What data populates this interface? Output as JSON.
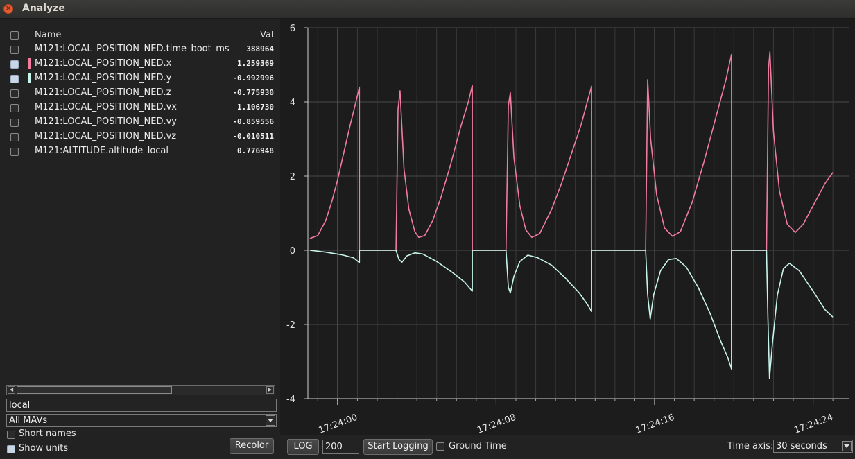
{
  "window": {
    "title": "Analyze"
  },
  "table": {
    "headers": {
      "name": "Name",
      "value": "Val"
    },
    "rows": [
      {
        "name": "M121:LOCAL_POSITION_NED.time_boot_ms",
        "value": "388964",
        "checked": false,
        "color": ""
      },
      {
        "name": "M121:LOCAL_POSITION_NED.x",
        "value": "1.259369",
        "checked": true,
        "color": "#f07ca0"
      },
      {
        "name": "M121:LOCAL_POSITION_NED.y",
        "value": "-0.992996",
        "checked": true,
        "color": "#c8f5ec"
      },
      {
        "name": "M121:LOCAL_POSITION_NED.z",
        "value": "-0.775930",
        "checked": false,
        "color": ""
      },
      {
        "name": "M121:LOCAL_POSITION_NED.vx",
        "value": "1.106730",
        "checked": false,
        "color": ""
      },
      {
        "name": "M121:LOCAL_POSITION_NED.vy",
        "value": "-0.859556",
        "checked": false,
        "color": ""
      },
      {
        "name": "M121:LOCAL_POSITION_NED.vz",
        "value": "-0.010511",
        "checked": false,
        "color": ""
      },
      {
        "name": "M121:ALTITUDE.altitude_local",
        "value": "0.776948",
        "checked": false,
        "color": ""
      }
    ]
  },
  "filter": {
    "value": "local"
  },
  "mav_select": {
    "value": "All MAVs"
  },
  "options": {
    "short_names": "Short names",
    "show_units": "Show units",
    "short_names_checked": false,
    "show_units_checked": true
  },
  "buttons": {
    "recolor": "Recolor",
    "log": "LOG",
    "start_logging": "Start Logging"
  },
  "log_field": {
    "value": "200"
  },
  "ground_time": {
    "label": "Ground Time",
    "checked": false
  },
  "time_axis": {
    "label": "Time axis:",
    "value": "30 seconds"
  },
  "chart_data": {
    "type": "line",
    "ylim": [
      -4,
      6
    ],
    "xlim": [
      -1.5,
      25.8
    ],
    "yticks": [
      -4,
      -2,
      0,
      2,
      4,
      6
    ],
    "xticks": [
      {
        "x": 0,
        "label": "17:24:00"
      },
      {
        "x": 8,
        "label": "17:24:08"
      },
      {
        "x": 16,
        "label": "17:24:16"
      },
      {
        "x": 24,
        "label": "17:24:24"
      }
    ],
    "grid": true,
    "series": [
      {
        "color": "#f07ca0",
        "points": [
          [
            -1.4,
            0.32
          ],
          [
            -1.0,
            0.4
          ],
          [
            -0.6,
            0.8
          ],
          [
            -0.3,
            1.3
          ],
          [
            0,
            1.9
          ],
          [
            0.3,
            2.6
          ],
          [
            0.6,
            3.3
          ],
          [
            0.9,
            3.95
          ],
          [
            1.1,
            4.4
          ],
          [
            1.1,
            0.0
          ],
          [
            2.95,
            0.0
          ],
          [
            3.05,
            3.8
          ],
          [
            3.15,
            4.3
          ],
          [
            3.35,
            2.2
          ],
          [
            3.6,
            1.1
          ],
          [
            3.9,
            0.5
          ],
          [
            4.1,
            0.35
          ],
          [
            4.4,
            0.4
          ],
          [
            4.8,
            0.8
          ],
          [
            5.2,
            1.4
          ],
          [
            5.7,
            2.3
          ],
          [
            6.2,
            3.3
          ],
          [
            6.6,
            4.0
          ],
          [
            6.8,
            4.45
          ],
          [
            6.8,
            0.0
          ],
          [
            8.5,
            0.0
          ],
          [
            8.62,
            3.9
          ],
          [
            8.72,
            4.25
          ],
          [
            8.9,
            2.5
          ],
          [
            9.2,
            1.2
          ],
          [
            9.5,
            0.55
          ],
          [
            9.8,
            0.35
          ],
          [
            10.2,
            0.45
          ],
          [
            10.8,
            1.1
          ],
          [
            11.3,
            1.8
          ],
          [
            11.8,
            2.6
          ],
          [
            12.3,
            3.4
          ],
          [
            12.6,
            4.0
          ],
          [
            12.82,
            4.42
          ],
          [
            12.82,
            0.0
          ],
          [
            15.55,
            0.0
          ],
          [
            15.65,
            4.6
          ],
          [
            15.8,
            3.0
          ],
          [
            16.1,
            1.5
          ],
          [
            16.5,
            0.6
          ],
          [
            16.9,
            0.38
          ],
          [
            17.3,
            0.5
          ],
          [
            17.9,
            1.3
          ],
          [
            18.5,
            2.4
          ],
          [
            19.1,
            3.6
          ],
          [
            19.6,
            4.6
          ],
          [
            19.88,
            5.28
          ],
          [
            19.88,
            0.0
          ],
          [
            21.65,
            0.0
          ],
          [
            21.75,
            4.9
          ],
          [
            21.82,
            5.35
          ],
          [
            22.0,
            3.2
          ],
          [
            22.3,
            1.6
          ],
          [
            22.7,
            0.7
          ],
          [
            23.1,
            0.48
          ],
          [
            23.5,
            0.7
          ],
          [
            24.1,
            1.3
          ],
          [
            24.6,
            1.8
          ],
          [
            25.0,
            2.1
          ]
        ]
      },
      {
        "color": "#c8f5ec",
        "points": [
          [
            -1.4,
            0.0
          ],
          [
            -0.6,
            -0.05
          ],
          [
            0.2,
            -0.12
          ],
          [
            0.8,
            -0.2
          ],
          [
            1.1,
            -0.33
          ],
          [
            1.1,
            0.0
          ],
          [
            2.95,
            0.0
          ],
          [
            3.1,
            -0.25
          ],
          [
            3.25,
            -0.32
          ],
          [
            3.5,
            -0.15
          ],
          [
            3.9,
            -0.07
          ],
          [
            4.3,
            -0.1
          ],
          [
            5.0,
            -0.3
          ],
          [
            5.8,
            -0.6
          ],
          [
            6.4,
            -0.85
          ],
          [
            6.8,
            -1.1
          ],
          [
            6.8,
            0.0
          ],
          [
            8.5,
            0.0
          ],
          [
            8.62,
            -1.0
          ],
          [
            8.72,
            -1.15
          ],
          [
            8.9,
            -0.7
          ],
          [
            9.2,
            -0.3
          ],
          [
            9.6,
            -0.13
          ],
          [
            10.1,
            -0.2
          ],
          [
            10.8,
            -0.4
          ],
          [
            11.5,
            -0.75
          ],
          [
            12.2,
            -1.15
          ],
          [
            12.6,
            -1.45
          ],
          [
            12.82,
            -1.65
          ],
          [
            12.82,
            0.0
          ],
          [
            15.55,
            0.0
          ],
          [
            15.65,
            -1.2
          ],
          [
            15.78,
            -1.85
          ],
          [
            15.95,
            -1.2
          ],
          [
            16.3,
            -0.55
          ],
          [
            16.7,
            -0.25
          ],
          [
            17.1,
            -0.22
          ],
          [
            17.6,
            -0.45
          ],
          [
            18.2,
            -1.0
          ],
          [
            18.8,
            -1.7
          ],
          [
            19.3,
            -2.4
          ],
          [
            19.7,
            -2.9
          ],
          [
            19.88,
            -3.2
          ],
          [
            19.88,
            0.0
          ],
          [
            21.65,
            0.0
          ],
          [
            21.72,
            -1.8
          ],
          [
            21.8,
            -3.45
          ],
          [
            21.95,
            -2.5
          ],
          [
            22.2,
            -1.2
          ],
          [
            22.5,
            -0.5
          ],
          [
            22.8,
            -0.35
          ],
          [
            23.3,
            -0.55
          ],
          [
            24.0,
            -1.1
          ],
          [
            24.6,
            -1.6
          ],
          [
            25.0,
            -1.8
          ]
        ]
      }
    ]
  }
}
